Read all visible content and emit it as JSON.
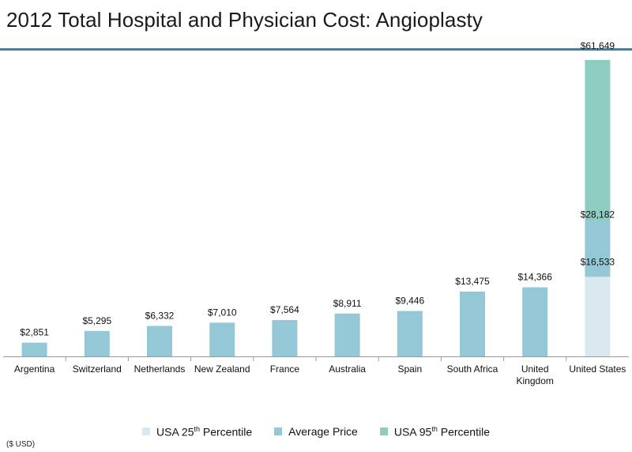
{
  "page": {
    "title": "2012 Total Hospital and Physician Cost: Angioplasty",
    "unit_note": "($ USD)"
  },
  "colors": {
    "title_rule": "#3f7fa8",
    "average_price": "#95c8d6",
    "usa_25th": "#d9e9ef",
    "usa_95th": "#8fccc2",
    "axis": "#9a9a9a"
  },
  "chart_data": {
    "type": "bar",
    "title": "2012 Total Hospital and Physician Cost: Angioplasty",
    "ylim": [
      0,
      70000
    ],
    "grid": false,
    "legend_position": "bottom",
    "categories": [
      {
        "lines": [
          "Argentina"
        ]
      },
      {
        "lines": [
          "Switzerland"
        ]
      },
      {
        "lines": [
          "Netherlands"
        ]
      },
      {
        "lines": [
          "New Zealand"
        ]
      },
      {
        "lines": [
          "France"
        ]
      },
      {
        "lines": [
          "Australia"
        ]
      },
      {
        "lines": [
          "Spain"
        ]
      },
      {
        "lines": [
          "South Africa"
        ]
      },
      {
        "lines": [
          "United",
          "Kingdom"
        ]
      },
      {
        "lines": [
          "United States"
        ]
      }
    ],
    "series": [
      {
        "name": "Average Price",
        "color": "#95c8d6",
        "values": [
          2851,
          5295,
          6332,
          7010,
          7564,
          8911,
          9446,
          13475,
          14366,
          28182
        ],
        "labels": [
          "$2,851",
          "$5,295",
          "$6,332",
          "$7,010",
          "$7,564",
          "$8,911",
          "$9,446",
          "$13,475",
          "$14,366",
          "$28,182"
        ]
      },
      {
        "name": "USA 25th Percentile",
        "color": "#d9e9ef",
        "values": [
          null,
          null,
          null,
          null,
          null,
          null,
          null,
          null,
          null,
          16533
        ],
        "labels": [
          null,
          null,
          null,
          null,
          null,
          null,
          null,
          null,
          null,
          "$16,533"
        ]
      },
      {
        "name": "USA 95th Percentile",
        "color": "#8fccc2",
        "values": [
          null,
          null,
          null,
          null,
          null,
          null,
          null,
          null,
          null,
          61649
        ],
        "labels": [
          null,
          null,
          null,
          null,
          null,
          null,
          null,
          null,
          null,
          "$61,649"
        ]
      }
    ]
  },
  "legend": [
    {
      "pre": "USA 25",
      "sup": "th",
      "post": " Percentile",
      "color": "#d9e9ef"
    },
    {
      "pre": "Average Price",
      "sup": "",
      "post": "",
      "color": "#95c8d6"
    },
    {
      "pre": "USA  95",
      "sup": "th",
      "post": " Percentile",
      "color": "#8fccc2"
    }
  ]
}
